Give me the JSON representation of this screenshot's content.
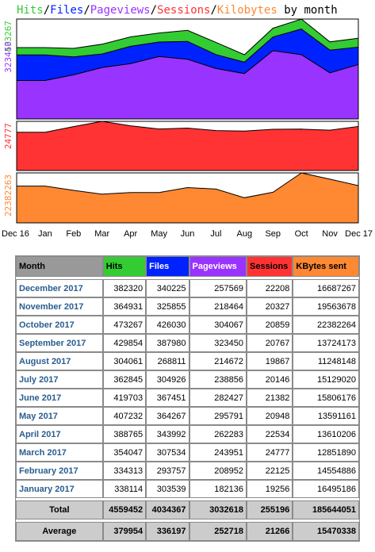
{
  "chart_title": {
    "hits": "Hits",
    "slash1": "/",
    "files": "Files",
    "slash2": "/",
    "pageviews": "Pageviews",
    "slash3": "/",
    "sessions": "Sessions",
    "slash4": "/",
    "kilobytes": "Kilobytes",
    "suffix": " by month"
  },
  "colors": {
    "hits": "#33cc33",
    "files": "#0022ff",
    "pageviews": "#9933ff",
    "sessions": "#ff3333",
    "kilobytes": "#ff8833"
  },
  "chart_data": {
    "type": "area",
    "x": [
      "Dec 16",
      "Jan",
      "Feb",
      "Mar",
      "Apr",
      "May",
      "Jun",
      "Jul",
      "Aug",
      "Sep",
      "Oct",
      "Nov",
      "Dec 17"
    ],
    "panels": [
      {
        "y_max_label": "473267",
        "y_mid_label": "323450",
        "ylim": [
          0,
          473267
        ],
        "series": [
          {
            "name": "Hits",
            "color": "#33cc33",
            "values": [
              338114,
              338114,
              334313,
              354047,
              388765,
              407232,
              419703,
              362845,
              304061,
              429854,
              473267,
              364931,
              382320
            ]
          },
          {
            "name": "Files",
            "color": "#0022ff",
            "values": [
              303539,
              303539,
              293757,
              307534,
              343992,
              364267,
              367451,
              304926,
              268811,
              387980,
              426030,
              325855,
              340225
            ]
          },
          {
            "name": "Pageviews",
            "color": "#9933ff",
            "values": [
              182136,
              182136,
              208952,
              243951,
              262283,
              295791,
              282427,
              238856,
              214672,
              323450,
              304067,
              218464,
              257569
            ]
          }
        ]
      },
      {
        "y_max_label": "24777",
        "ylim": [
          0,
          24777
        ],
        "series": [
          {
            "name": "Sessions",
            "color": "#ff3333",
            "values": [
              19256,
              19256,
              22125,
              24777,
              22534,
              20948,
              21382,
              20146,
              19867,
              20767,
              20859,
              20327,
              22208
            ]
          }
        ]
      },
      {
        "y_max_label": "22382263",
        "ylim": [
          0,
          22382264
        ],
        "series": [
          {
            "name": "Kilobytes",
            "color": "#ff8833",
            "values": [
              16495186,
              16495186,
              14554886,
              12851890,
              13610206,
              13591161,
              15806176,
              15129020,
              11248148,
              13724173,
              22382264,
              19563678,
              16687267
            ]
          }
        ]
      }
    ]
  },
  "table": {
    "headers": [
      "Month",
      "Hits",
      "Files",
      "Pageviews",
      "Sessions",
      "KBytes sent"
    ],
    "rows": [
      [
        "December 2017",
        "382320",
        "340225",
        "257569",
        "22208",
        "16687267"
      ],
      [
        "November 2017",
        "364931",
        "325855",
        "218464",
        "20327",
        "19563678"
      ],
      [
        "October 2017",
        "473267",
        "426030",
        "304067",
        "20859",
        "22382264"
      ],
      [
        "September 2017",
        "429854",
        "387980",
        "323450",
        "20767",
        "13724173"
      ],
      [
        "August 2017",
        "304061",
        "268811",
        "214672",
        "19867",
        "11248148"
      ],
      [
        "July 2017",
        "362845",
        "304926",
        "238856",
        "20146",
        "15129020"
      ],
      [
        "June 2017",
        "419703",
        "367451",
        "282427",
        "21382",
        "15806176"
      ],
      [
        "May 2017",
        "407232",
        "364267",
        "295791",
        "20948",
        "13591161"
      ],
      [
        "April 2017",
        "388765",
        "343992",
        "262283",
        "22534",
        "13610206"
      ],
      [
        "March 2017",
        "354047",
        "307534",
        "243951",
        "24777",
        "12851890"
      ],
      [
        "February 2017",
        "334313",
        "293757",
        "208952",
        "22125",
        "14554886"
      ],
      [
        "January 2017",
        "338114",
        "303539",
        "182136",
        "19256",
        "16495186"
      ]
    ],
    "total": [
      "Total",
      "4559452",
      "4034367",
      "3032618",
      "255196",
      "185644051"
    ],
    "average": [
      "Average",
      "379954",
      "336197",
      "252718",
      "21266",
      "15470338"
    ]
  }
}
